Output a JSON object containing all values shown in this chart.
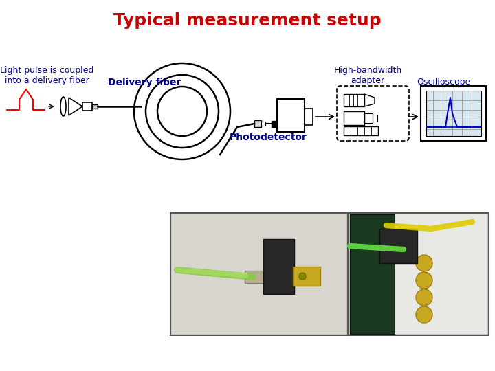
{
  "title": "Typical measurement setup",
  "title_color": "#cc0000",
  "title_fontsize": 18,
  "title_bold": true,
  "bg_color": "#ffffff",
  "label_color": "#00008B",
  "label_fontsize": 9,
  "labels": {
    "light_pulse": "Light pulse is coupled\ninto a delivery fiber",
    "delivery_fiber": "Delivery fiber",
    "photodetector": "Photodetector",
    "high_bw": "High-bandwidth\nadapter",
    "oscilloscope": "Oscilloscope"
  }
}
